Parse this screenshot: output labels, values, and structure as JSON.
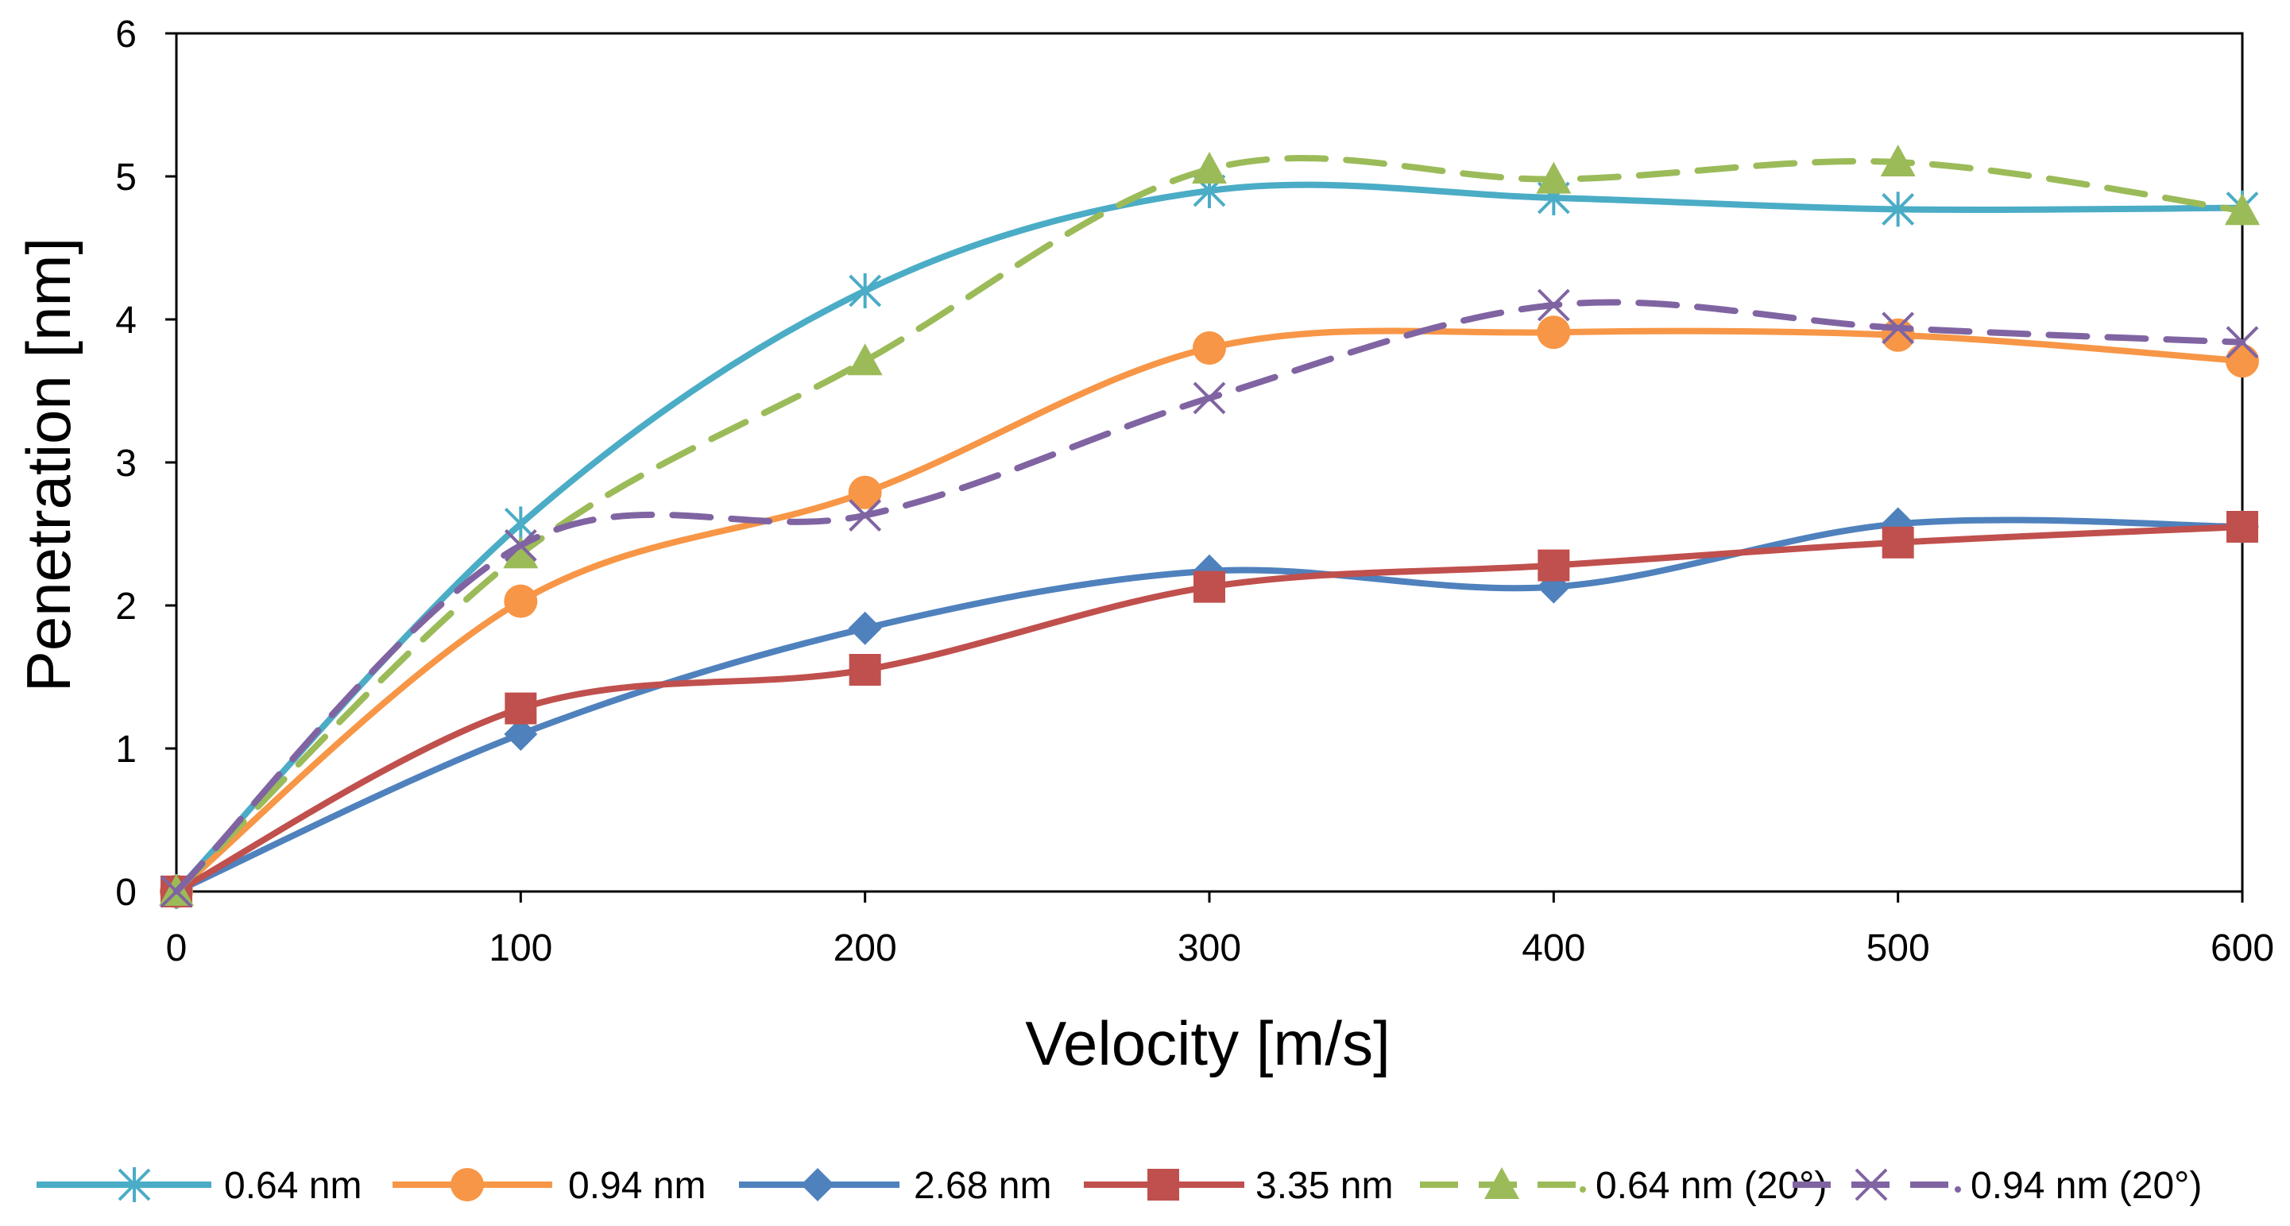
{
  "chart_data": {
    "type": "line",
    "title": "",
    "xlabel": "Velocity [m/s]",
    "ylabel": "Penetration [nm]",
    "xlim": [
      0,
      600
    ],
    "ylim": [
      0,
      6
    ],
    "xticks": [
      0,
      100,
      200,
      300,
      400,
      500,
      600
    ],
    "yticks": [
      0,
      1,
      2,
      3,
      4,
      5,
      6
    ],
    "grid": false,
    "legend_position": "bottom",
    "x": [
      0,
      100,
      200,
      300,
      400,
      500,
      600
    ],
    "series": [
      {
        "name": "0.64 nm",
        "values": [
          0,
          2.57,
          4.2,
          4.9,
          4.85,
          4.77,
          4.78
        ],
        "color": "#4bacc6",
        "marker": "asterisk",
        "dash": "solid"
      },
      {
        "name": "0.94 nm",
        "values": [
          0,
          2.03,
          2.79,
          3.8,
          3.91,
          3.89,
          3.71
        ],
        "color": "#f79646",
        "marker": "circle",
        "dash": "solid"
      },
      {
        "name": "2.68 nm",
        "values": [
          0,
          1.1,
          1.84,
          2.24,
          2.13,
          2.57,
          2.55
        ],
        "color": "#4f81bd",
        "marker": "diamond",
        "dash": "solid"
      },
      {
        "name": "3.35 nm",
        "values": [
          0,
          1.28,
          1.55,
          2.13,
          2.28,
          2.44,
          2.55
        ],
        "color": "#c0504d",
        "marker": "square",
        "dash": "solid"
      },
      {
        "name": "0.64 nm (20°)",
        "values": [
          0,
          2.36,
          3.71,
          5.05,
          4.98,
          5.1,
          4.76
        ],
        "color": "#9bbb59",
        "marker": "triangle",
        "dash": "dashed"
      },
      {
        "name": "0.94 nm (20°)",
        "values": [
          0,
          2.42,
          2.63,
          3.45,
          4.1,
          3.94,
          3.84
        ],
        "color": "#8064a2",
        "marker": "x",
        "dash": "dashed"
      }
    ]
  }
}
